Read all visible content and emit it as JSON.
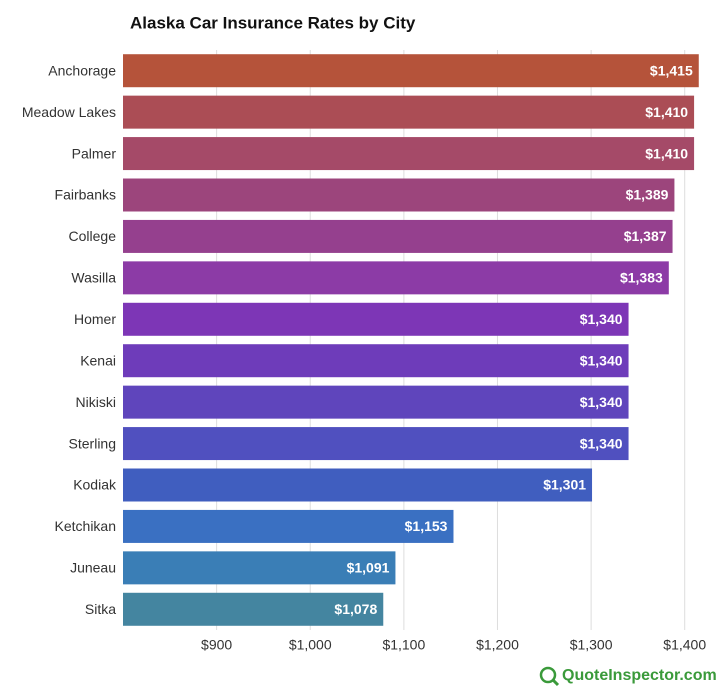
{
  "chart_data": {
    "type": "bar",
    "orientation": "horizontal",
    "title": "Alaska Car Insurance Rates by City",
    "categories": [
      "Anchorage",
      "Meadow Lakes",
      "Palmer",
      "Fairbanks",
      "College",
      "Wasilla",
      "Homer",
      "Kenai",
      "Nikiski",
      "Sterling",
      "Kodiak",
      "Ketchikan",
      "Juneau",
      "Sitka"
    ],
    "values": [
      1415,
      1410,
      1410,
      1389,
      1387,
      1383,
      1340,
      1340,
      1340,
      1340,
      1301,
      1153,
      1091,
      1078
    ],
    "value_labels": [
      "$1,415",
      "$1,410",
      "$1,410",
      "$1,389",
      "$1,387",
      "$1,383",
      "$1,340",
      "$1,340",
      "$1,340",
      "$1,340",
      "$1,301",
      "$1,153",
      "$1,091",
      "$1,078"
    ],
    "colors": [
      "#b5533a",
      "#ab4d55",
      "#a54a68",
      "#9c457c",
      "#95408e",
      "#8c3ba6",
      "#7d36b6",
      "#6e3cba",
      "#5f45bc",
      "#5050bf",
      "#405ebf",
      "#3a70c2",
      "#3a7eb6",
      "#4485a0"
    ],
    "xlim": [
      800,
      1427
    ],
    "xticks": [
      {
        "value": 900,
        "label": "$900"
      },
      {
        "value": 1000,
        "label": "$1,000"
      },
      {
        "value": 1100,
        "label": "$1,100"
      },
      {
        "value": 1200,
        "label": "$1,200"
      },
      {
        "value": 1300,
        "label": "$1,300"
      },
      {
        "value": 1400,
        "label": "$1,400"
      }
    ],
    "grid": true
  },
  "brand": "QuoteInspector.com"
}
